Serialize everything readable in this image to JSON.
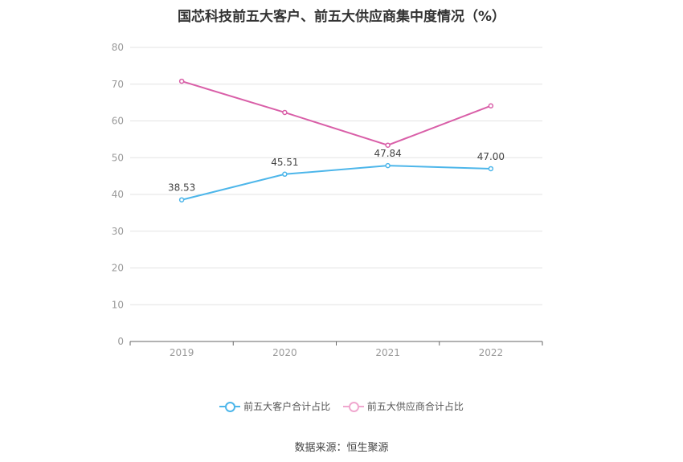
{
  "chart_data": {
    "type": "line",
    "title": "国芯科技前五大客户、前五大供应商集中度情况（%）",
    "categories": [
      "2019",
      "2020",
      "2021",
      "2022"
    ],
    "ylim": [
      0,
      80
    ],
    "yticks": [
      0,
      10,
      20,
      30,
      40,
      50,
      60,
      70,
      80
    ],
    "grid": true,
    "legend_position": "bottom",
    "series": [
      {
        "name": "前五大客户合计占比",
        "values": [
          38.53,
          45.51,
          47.84,
          47.0
        ],
        "labels": [
          "38.53",
          "45.51",
          "47.84",
          "47.00"
        ],
        "color": "#4db6ea"
      },
      {
        "name": "前五大供应商合计占比",
        "values": [
          70.8,
          62.3,
          53.4,
          64.1
        ],
        "labels": null,
        "color": "#d95fa8"
      }
    ]
  },
  "source": "数据来源：恒生聚源"
}
